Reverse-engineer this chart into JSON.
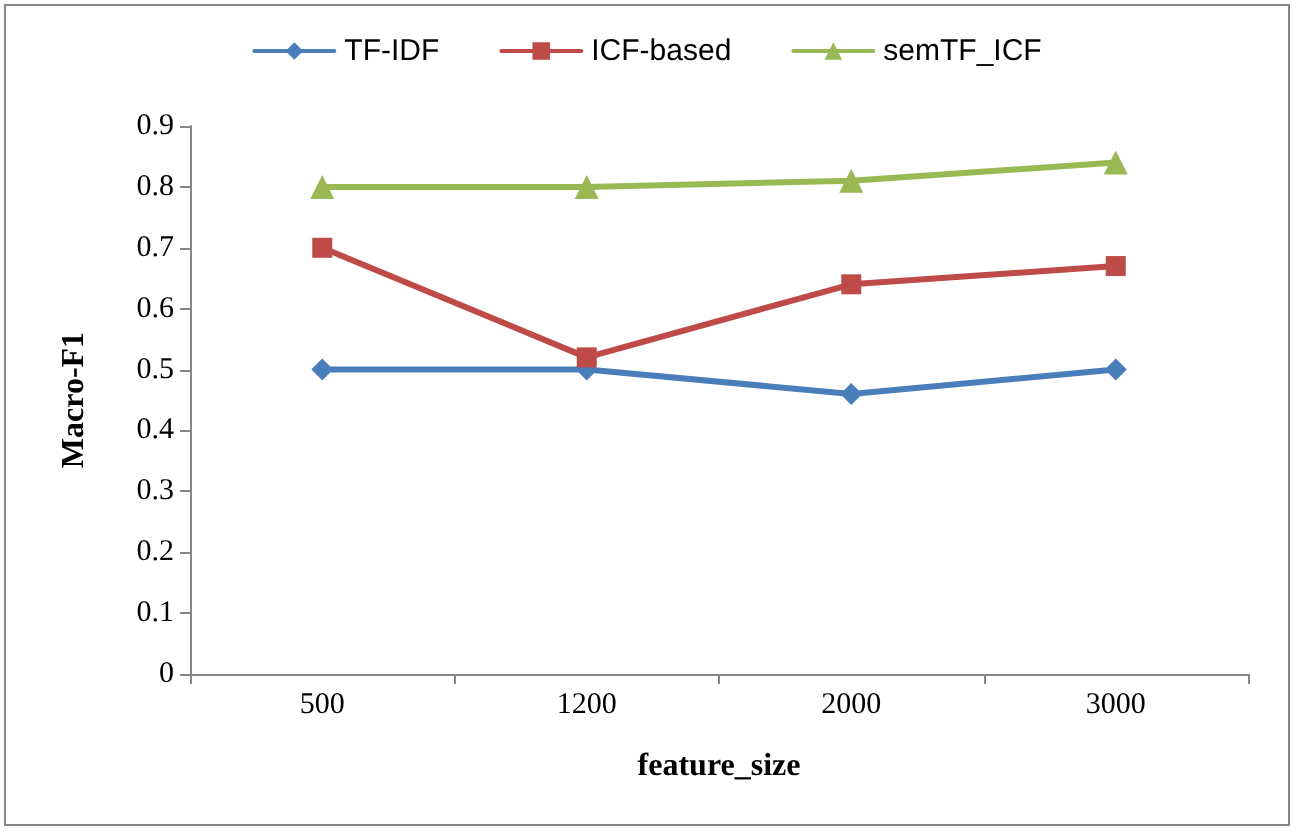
{
  "chart_data": {
    "type": "line",
    "xlabel": "feature_size",
    "ylabel": "Macro-F1",
    "categories": [
      "500",
      "1200",
      "2000",
      "3000"
    ],
    "series": [
      {
        "name": "TF-IDF",
        "color": "#4a7ebb",
        "marker": "diamond",
        "values": [
          0.5,
          0.5,
          0.46,
          0.5
        ]
      },
      {
        "name": "ICF-based",
        "color": "#be4b48",
        "marker": "square",
        "values": [
          0.7,
          0.52,
          0.64,
          0.67
        ]
      },
      {
        "name": "semTF_ICF",
        "color": "#98b954",
        "marker": "triangle",
        "values": [
          0.8,
          0.8,
          0.81,
          0.84
        ]
      }
    ],
    "ylim": [
      0,
      0.9
    ],
    "yticks": [
      0,
      0.1,
      0.2,
      0.3,
      0.4,
      0.5,
      0.6,
      0.7,
      0.8,
      0.9
    ],
    "grid": false,
    "legend": "top",
    "line_style": "solid"
  }
}
